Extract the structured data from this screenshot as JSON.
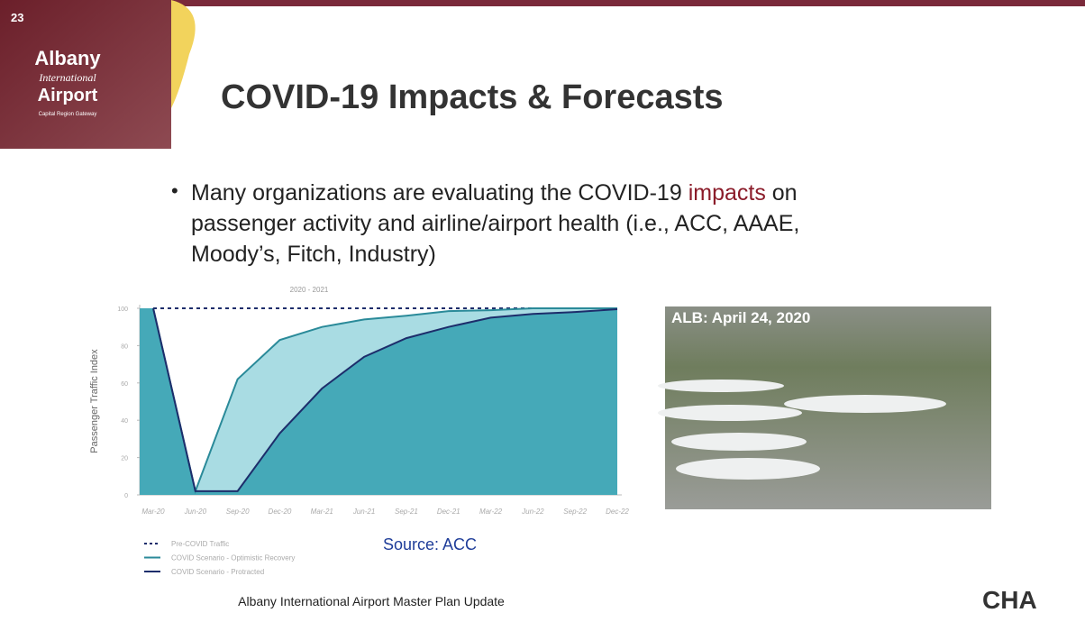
{
  "slide_number": "23",
  "logo": {
    "line1": "Albany",
    "line2": "International",
    "line3": "Airport",
    "tagline": "Capital Region Gateway"
  },
  "title": "COVID-19 Impacts & Forecasts",
  "bullet": {
    "before": "Many organizations are evaluating the COVID-19 ",
    "highlight": "impacts",
    "after": " on passenger activity  and airline/airport health (i.e., ACC, AAAE, Moody’s, Fitch, Industry)"
  },
  "photo_caption": "ALB: April 24, 2020",
  "source": "Source: ACC",
  "footer": "Albany International Airport Master Plan Update",
  "brand": "CHA",
  "chart_data": {
    "type": "area",
    "title": "2020 - 2021",
    "y_label": "Passenger Traffic Index",
    "categories": [
      "Mar-20",
      "Jun-20",
      "Sep-20",
      "Dec-20",
      "Mar-21",
      "Jun-21",
      "Sep-21",
      "Dec-21",
      "Mar-22",
      "Jun-22",
      "Sep-22",
      "Dec-22"
    ],
    "series": [
      {
        "name": "Pre-COVID Traffic",
        "color": "#1d2d6b",
        "style": "dashed",
        "values": [
          100,
          100,
          100,
          100,
          100,
          100,
          100,
          100,
          100,
          100,
          100,
          100
        ]
      },
      {
        "name": "COVID Scenario - Optimistic Recovery",
        "color": "#2a8a99",
        "fill": "#a9dce3",
        "style": "solid",
        "values": [
          100,
          2,
          62,
          83,
          90,
          94,
          96,
          98.5,
          99,
          100,
          100,
          100
        ]
      },
      {
        "name": "COVID Scenario - Protracted",
        "color": "#1d2d6b",
        "fill": "#45a9b8",
        "style": "solid",
        "values": [
          100,
          2,
          2,
          33,
          57,
          74,
          84,
          90,
          95,
          97,
          98,
          99.5
        ]
      }
    ],
    "ylim": [
      0,
      100
    ],
    "yticks": [
      0,
      20,
      40,
      60,
      80,
      100
    ]
  }
}
